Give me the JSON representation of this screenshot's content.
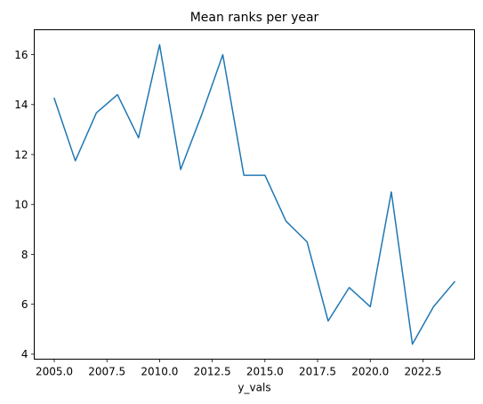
{
  "chart_data": {
    "type": "line",
    "title": "Mean ranks per year",
    "xlabel": "y_vals",
    "ylabel": "",
    "x": [
      2005,
      2006,
      2007,
      2008,
      2009,
      2010,
      2011,
      2012,
      2013,
      2014,
      2015,
      2016,
      2017,
      2018,
      2019,
      2020,
      2021,
      2022,
      2023,
      2024
    ],
    "series": [
      {
        "values": [
          14.25,
          11.75,
          13.67,
          14.4,
          12.67,
          16.4,
          11.4,
          13.6,
          16.0,
          11.17,
          11.17,
          9.33,
          8.5,
          5.33,
          6.67,
          5.9,
          10.5,
          4.4,
          5.9,
          6.9
        ],
        "color": "#1f77b4"
      }
    ],
    "xlim": [
      2004.05,
      2024.95
    ],
    "ylim": [
      3.8,
      17.0
    ],
    "xticks": [
      2005.0,
      2007.5,
      2010.0,
      2012.5,
      2015.0,
      2017.5,
      2020.0,
      2022.5
    ],
    "xtick_labels": [
      "2005.0",
      "2007.5",
      "2010.0",
      "2012.5",
      "2015.0",
      "2017.5",
      "2020.0",
      "2022.5"
    ],
    "yticks": [
      4,
      6,
      8,
      10,
      12,
      14,
      16
    ],
    "ytick_labels": [
      "4",
      "6",
      "8",
      "10",
      "12",
      "14",
      "16"
    ],
    "grid": false,
    "legend": "none"
  }
}
